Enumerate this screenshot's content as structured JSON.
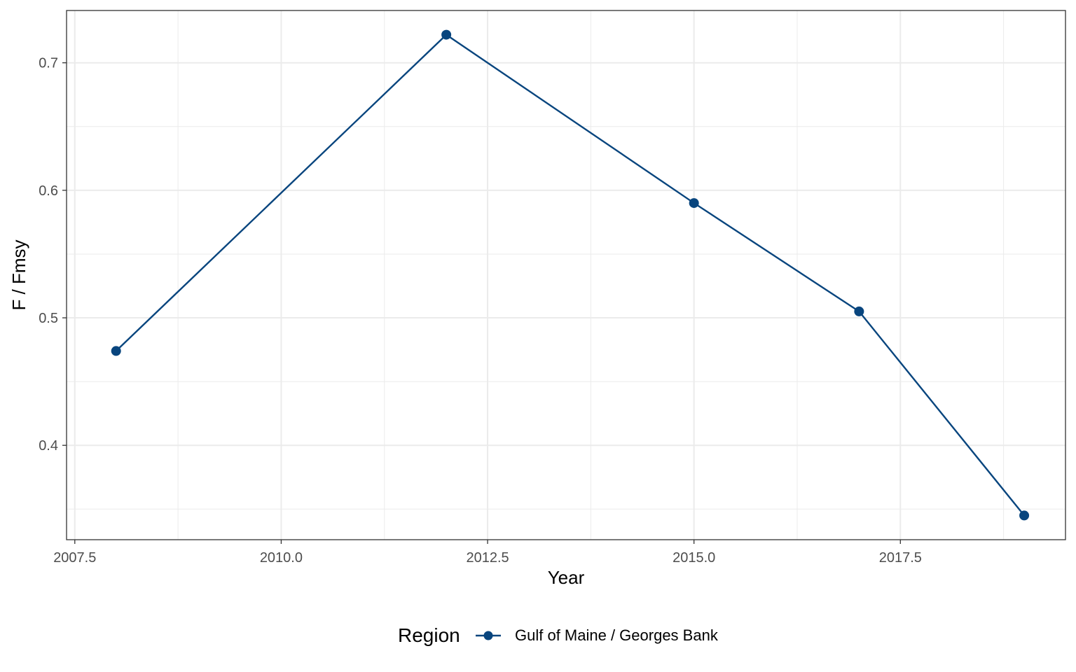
{
  "chart_data": {
    "type": "line",
    "title": "",
    "xlabel": "Year",
    "ylabel": "F / Fmsy",
    "xlim": [
      2007.4,
      2019.5
    ],
    "ylim": [
      0.326,
      0.741
    ],
    "x_ticks": [
      2007.5,
      2010.0,
      2012.5,
      2015.0,
      2017.5
    ],
    "x_tick_labels": [
      "2007.5",
      "2010.0",
      "2012.5",
      "2015.0",
      "2017.5"
    ],
    "x_minor_ticks": [
      2008.75,
      2011.25,
      2013.75,
      2016.25,
      2018.75
    ],
    "y_ticks": [
      0.4,
      0.5,
      0.6,
      0.7
    ],
    "y_tick_labels": [
      "0.4",
      "0.5",
      "0.6",
      "0.7"
    ],
    "y_minor_ticks": [
      0.35,
      0.45,
      0.55,
      0.65
    ],
    "grid": true,
    "legend": {
      "title": "Region",
      "position": "bottom"
    },
    "series": [
      {
        "name": "Gulf of Maine / Georges Bank",
        "color": "#08457e",
        "x": [
          2008,
          2012,
          2015,
          2017,
          2019
        ],
        "y": [
          0.474,
          0.722,
          0.59,
          0.505,
          0.345
        ]
      }
    ]
  }
}
